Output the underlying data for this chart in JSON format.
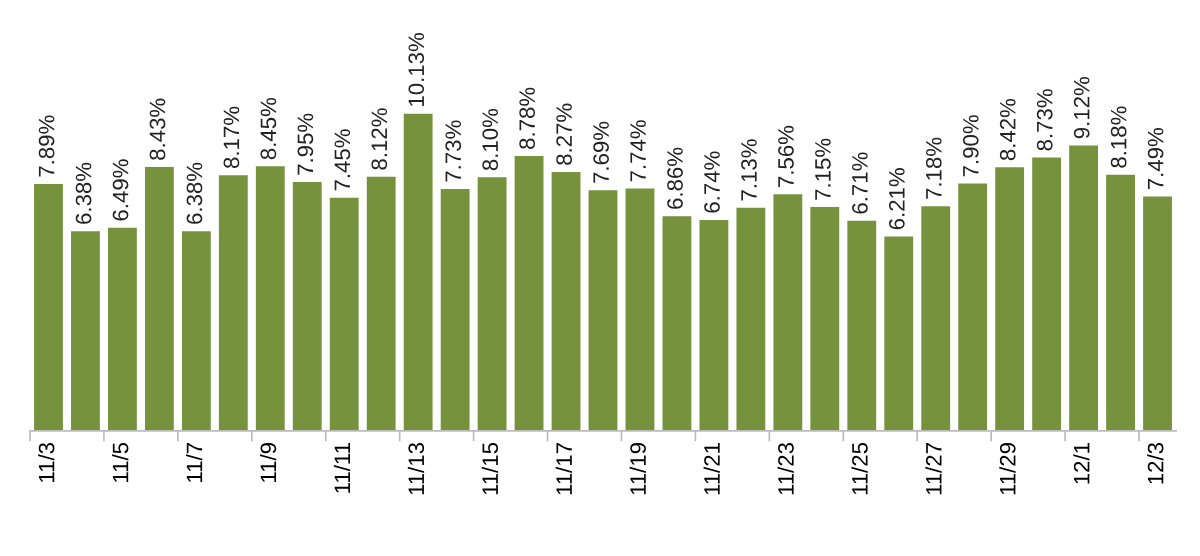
{
  "chart_data": {
    "type": "bar",
    "categories": [
      "11/3",
      null,
      "11/5",
      null,
      "11/7",
      null,
      "11/9",
      null,
      "11/11",
      null,
      "11/13",
      null,
      "11/15",
      null,
      "11/17",
      null,
      "11/19",
      null,
      "11/21",
      null,
      "11/23",
      null,
      "11/25",
      null,
      "11/27",
      null,
      "11/29",
      null,
      "12/1",
      null,
      "12/3"
    ],
    "values": [
      7.89,
      6.38,
      6.49,
      8.43,
      6.38,
      8.17,
      8.45,
      7.95,
      7.45,
      8.12,
      10.13,
      7.73,
      8.1,
      8.78,
      8.27,
      7.69,
      7.74,
      6.86,
      6.74,
      7.13,
      7.56,
      7.15,
      6.71,
      6.21,
      7.18,
      7.9,
      8.42,
      8.73,
      9.12,
      8.18,
      7.49
    ],
    "value_labels": [
      "7.89%",
      "6.38%",
      "6.49%",
      "8.43%",
      "6.38%",
      "8.17%",
      "8.45%",
      "7.95%",
      "7.45%",
      "8.12%",
      "10.13%",
      "7.73%",
      "8.10%",
      "8.78%",
      "8.27%",
      "7.69%",
      "7.74%",
      "6.86%",
      "6.74%",
      "7.13%",
      "7.56%",
      "7.15%",
      "6.71%",
      "6.21%",
      "7.18%",
      "7.90%",
      "8.42%",
      "8.73%",
      "9.12%",
      "8.18%",
      "7.49%"
    ],
    "color": "#76923c",
    "grid": false,
    "legend": false
  }
}
